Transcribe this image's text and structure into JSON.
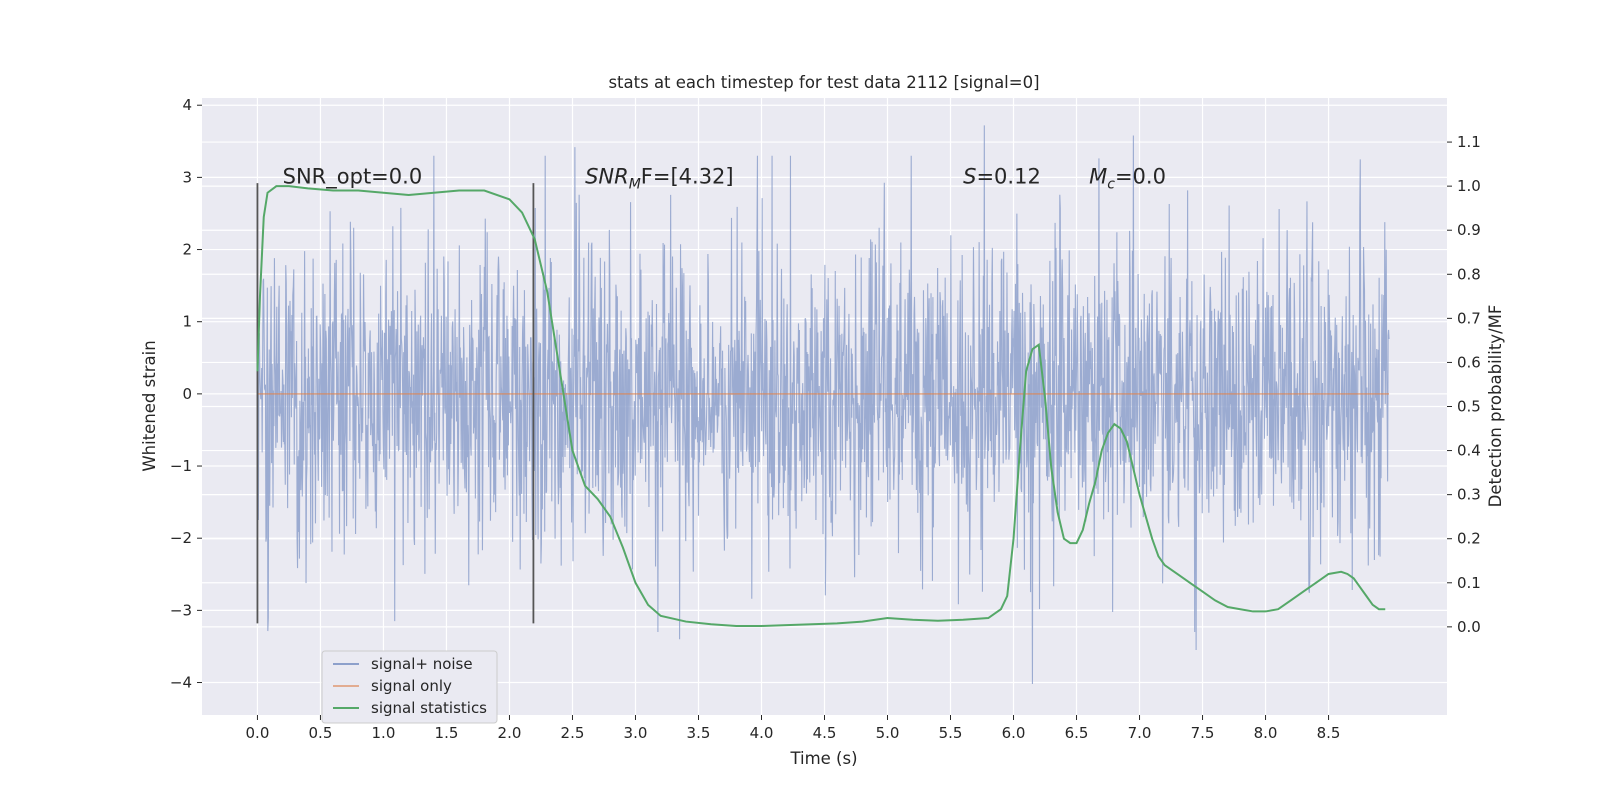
{
  "chart_data": {
    "type": "line",
    "title": "stats at each timestep for test data 2112 [signal=0]",
    "xlabel": "Time (s)",
    "ylabel_left": "Whitened strain",
    "ylabel_right": "Detection probability/MF",
    "xlim": [
      -0.44,
      9.44
    ],
    "ylim_left": [
      -4.45,
      4.1
    ],
    "ylim_right": [
      -0.2,
      1.2
    ],
    "x_ticks": [
      "0.0",
      "0.5",
      "1.0",
      "1.5",
      "2.0",
      "2.5",
      "3.0",
      "3.5",
      "4.0",
      "4.5",
      "5.0",
      "5.5",
      "6.0",
      "6.5",
      "7.0",
      "7.5",
      "8.0",
      "8.5"
    ],
    "y_ticks_left": [
      "−4",
      "−3",
      "−2",
      "−1",
      "0",
      "1",
      "2",
      "3",
      "4"
    ],
    "y_ticks_right": [
      "0.0",
      "0.1",
      "0.2",
      "0.3",
      "0.4",
      "0.5",
      "0.6",
      "0.7",
      "0.8",
      "0.9",
      "1.0",
      "1.1"
    ],
    "grid": true,
    "background": "#eaeaf2",
    "annotations": [
      {
        "text": "SNR_opt=0.0",
        "x": 0.2,
        "y": 3.0
      },
      {
        "pre": "SNR",
        "sub": "M",
        "post": "F=[4.32]",
        "x": 2.6,
        "y": 3.0
      },
      {
        "pre": "S",
        "sub": "",
        "post": "=0.12",
        "x": 5.6,
        "y": 3.0
      },
      {
        "pre": "M",
        "sub": "c",
        "post": "=0.0",
        "x": 6.6,
        "y": 3.0
      }
    ],
    "vertical_markers": [
      {
        "x": 0.0,
        "y_range": [
          -3.18,
          2.92
        ]
      },
      {
        "x": 2.19,
        "y_range": [
          -3.18,
          2.92
        ]
      }
    ],
    "series": [
      {
        "name": "signal+ noise",
        "color": "#8da0cb",
        "axis": "left",
        "description": "whitened strain noise, roughly Gaussian with sigma ~1.05 spanning x 0 to 8.98",
        "x_range": [
          0.0,
          8.98
        ],
        "sigma": 1.05,
        "peaks": [
          [
            5.77,
            3.72
          ],
          [
            6.15,
            -4.02
          ],
          [
            7.45,
            -3.55
          ],
          [
            2.52,
            3.42
          ],
          [
            3.35,
            -3.4
          ],
          [
            8.75,
            3.25
          ],
          [
            6.95,
            3.58
          ]
        ]
      },
      {
        "name": "signal only",
        "color": "#dd8452",
        "axis": "left",
        "x": [
          0.0,
          8.98
        ],
        "y": [
          0.0,
          0.0
        ]
      },
      {
        "name": "signal statistics",
        "color": "#55a868",
        "axis": "right",
        "x": [
          0.0,
          0.02,
          0.05,
          0.08,
          0.15,
          0.25,
          0.4,
          0.6,
          0.8,
          1.0,
          1.2,
          1.4,
          1.6,
          1.8,
          2.0,
          2.1,
          2.2,
          2.3,
          2.4,
          2.5,
          2.6,
          2.7,
          2.8,
          2.9,
          3.0,
          3.1,
          3.2,
          3.4,
          3.6,
          3.8,
          4.0,
          4.2,
          4.4,
          4.6,
          4.8,
          5.0,
          5.2,
          5.4,
          5.6,
          5.8,
          5.9,
          5.95,
          6.0,
          6.05,
          6.1,
          6.15,
          6.2,
          6.25,
          6.3,
          6.35,
          6.4,
          6.45,
          6.5,
          6.55,
          6.6,
          6.65,
          6.7,
          6.75,
          6.8,
          6.85,
          6.9,
          6.95,
          7.0,
          7.05,
          7.1,
          7.15,
          7.2,
          7.3,
          7.4,
          7.5,
          7.6,
          7.7,
          7.8,
          7.9,
          8.0,
          8.1,
          8.2,
          8.3,
          8.4,
          8.5,
          8.6,
          8.65,
          8.7,
          8.75,
          8.8,
          8.85,
          8.9,
          8.95
        ],
        "y": [
          0.58,
          0.75,
          0.93,
          0.985,
          1.0,
          1.0,
          0.995,
          0.99,
          0.99,
          0.985,
          0.98,
          0.985,
          0.99,
          0.99,
          0.97,
          0.94,
          0.88,
          0.76,
          0.58,
          0.4,
          0.32,
          0.29,
          0.25,
          0.18,
          0.1,
          0.05,
          0.025,
          0.012,
          0.006,
          0.002,
          0.002,
          0.004,
          0.006,
          0.008,
          0.012,
          0.02,
          0.016,
          0.014,
          0.016,
          0.02,
          0.04,
          0.07,
          0.2,
          0.4,
          0.58,
          0.63,
          0.64,
          0.52,
          0.36,
          0.26,
          0.2,
          0.19,
          0.19,
          0.22,
          0.28,
          0.33,
          0.4,
          0.44,
          0.46,
          0.45,
          0.42,
          0.36,
          0.3,
          0.25,
          0.2,
          0.16,
          0.14,
          0.12,
          0.1,
          0.08,
          0.06,
          0.045,
          0.04,
          0.035,
          0.035,
          0.04,
          0.06,
          0.08,
          0.1,
          0.12,
          0.125,
          0.12,
          0.11,
          0.09,
          0.07,
          0.05,
          0.04,
          0.04
        ]
      }
    ],
    "legend": {
      "position": "lower-left",
      "entries": [
        "signal+ noise",
        "signal only",
        "signal statistics"
      ]
    }
  }
}
